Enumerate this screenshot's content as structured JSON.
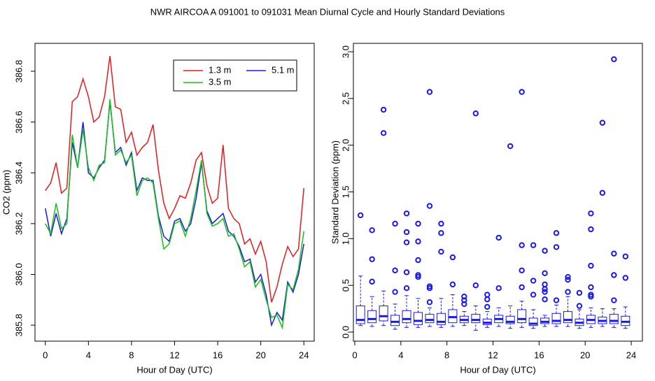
{
  "title": "NWR   AIRCOA A   091001 to 091031   Mean Diurnal Cycle and Hourly Standard Deviations",
  "chart_data": [
    {
      "type": "line",
      "x_label": "Hour of Day (UTC)",
      "y_label": "CO2 (ppm)",
      "x": [
        0,
        0.5,
        1,
        1.5,
        2,
        2.5,
        3,
        3.5,
        4,
        4.5,
        5,
        5.5,
        6,
        6.5,
        7,
        7.5,
        8,
        8.5,
        9,
        9.5,
        10,
        10.5,
        11,
        11.5,
        12,
        12.5,
        13,
        13.5,
        14,
        14.5,
        15,
        15.5,
        16,
        16.5,
        17,
        17.5,
        18,
        18.5,
        19,
        19.5,
        20,
        20.5,
        21,
        21.5,
        22,
        22.5,
        23,
        23.5,
        24
      ],
      "xlim": [
        -0.96,
        24.96
      ],
      "xticks": [
        0,
        4,
        8,
        12,
        16,
        20,
        24
      ],
      "ylim": [
        385.737,
        386.91
      ],
      "yticks": [
        385.8,
        {
          "value": 386,
          "label": "386.0"
        },
        386.2,
        386.4,
        386.6,
        386.8
      ],
      "legend": "top right",
      "series": [
        {
          "name": "1.3 m",
          "color": "#e8191c",
          "values": [
            386.33,
            386.36,
            386.44,
            386.32,
            386.34,
            386.68,
            386.7,
            386.77,
            386.7,
            386.6,
            386.62,
            386.7,
            386.86,
            386.66,
            386.65,
            386.52,
            386.56,
            386.47,
            386.5,
            386.52,
            386.59,
            386.41,
            386.28,
            386.22,
            386.26,
            386.31,
            386.3,
            386.36,
            386.45,
            386.48,
            386.35,
            386.28,
            386.3,
            386.51,
            386.26,
            386.22,
            386.2,
            386.12,
            386.14,
            386.08,
            386.13,
            386.05,
            385.89,
            385.95,
            386.04,
            386.11,
            386.07,
            386.1,
            386.34
          ]
        },
        {
          "name": "5.1 m",
          "color": "#1a1ae6",
          "values": [
            386.26,
            386.15,
            386.24,
            386.16,
            386.22,
            386.52,
            386.42,
            386.6,
            386.4,
            386.38,
            386.42,
            386.45,
            386.68,
            386.48,
            386.5,
            386.43,
            386.48,
            386.33,
            386.38,
            386.37,
            386.37,
            386.23,
            386.15,
            386.13,
            386.21,
            386.22,
            386.17,
            386.2,
            386.3,
            386.44,
            386.25,
            386.2,
            386.22,
            386.24,
            386.17,
            386.15,
            386.11,
            386.05,
            386.06,
            385.97,
            386,
            385.92,
            385.8,
            385.85,
            385.82,
            385.97,
            385.93,
            386,
            386.12
          ]
        },
        {
          "name": "3.5 m",
          "color": "#17c017",
          "values": [
            386.2,
            386.16,
            386.28,
            386.18,
            386.2,
            386.55,
            386.42,
            386.57,
            386.42,
            386.37,
            386.43,
            386.44,
            386.69,
            386.47,
            386.49,
            386.44,
            386.47,
            386.31,
            386.37,
            386.38,
            386.36,
            386.22,
            386.1,
            386.12,
            386.2,
            386.21,
            386.15,
            386.22,
            386.33,
            386.45,
            386.24,
            386.19,
            386.2,
            386.22,
            386.15,
            386.16,
            386.1,
            386.03,
            386.05,
            385.95,
            385.98,
            385.9,
            385.83,
            385.84,
            385.79,
            385.96,
            385.94,
            386.02,
            386.17
          ]
        }
      ]
    },
    {
      "type": "box",
      "x_label": "Hour of Day (UTC)",
      "y_label": "Standard Deviation (ppm)",
      "color": "#1a1ae6",
      "xlim": [
        -0.12,
        24.97
      ],
      "xticks": [
        0,
        4,
        8,
        12,
        16,
        20,
        24
      ],
      "ylim": [
        -0.097,
        3.09
      ],
      "yticks": [
        {
          "value": 0,
          "label": "0.0"
        },
        0.5,
        {
          "value": 1,
          "label": "1.0"
        },
        1.5,
        {
          "value": 2,
          "label": "2.0"
        },
        2.5,
        {
          "value": 3,
          "label": "3.0"
        }
      ],
      "boxes": [
        {
          "x": 0.5,
          "low": 0.07,
          "q1": 0.09,
          "median": 0.13,
          "q3": 0.28,
          "high": 0.6,
          "outliers": [
            1.25
          ]
        },
        {
          "x": 1.5,
          "low": 0.06,
          "q1": 0.1,
          "median": 0.14,
          "q3": 0.23,
          "high": 0.38,
          "outliers": [
            0.54,
            0.78,
            1.09
          ]
        },
        {
          "x": 2.5,
          "low": 0.07,
          "q1": 0.12,
          "median": 0.17,
          "q3": 0.28,
          "high": 0.44,
          "outliers": [
            2.13,
            2.38
          ]
        },
        {
          "x": 3.5,
          "low": 0.03,
          "q1": 0.07,
          "median": 0.11,
          "q3": 0.18,
          "high": 0.3,
          "outliers": [
            0.43,
            0.66,
            1.16
          ]
        },
        {
          "x": 4.5,
          "low": 0.05,
          "q1": 0.1,
          "median": 0.14,
          "q3": 0.23,
          "high": 0.39,
          "outliers": [
            0.47,
            0.64,
            0.96,
            1.07,
            1.27
          ]
        },
        {
          "x": 5.5,
          "low": 0.05,
          "q1": 0.08,
          "median": 0.12,
          "q3": 0.21,
          "high": 0.36,
          "outliers": [
            0.59,
            0.61,
            0.77,
            0.97,
            1.16
          ]
        },
        {
          "x": 6.5,
          "low": 0.06,
          "q1": 0.1,
          "median": 0.13,
          "q3": 0.19,
          "high": 0.26,
          "outliers": [
            0.32,
            0.47,
            0.49,
            1.35,
            2.57
          ]
        },
        {
          "x": 7.5,
          "low": 0.05,
          "q1": 0.08,
          "median": 0.11,
          "q3": 0.2,
          "high": 0.36,
          "outliers": [
            0.86,
            1.06,
            1.16
          ]
        },
        {
          "x": 8.5,
          "low": 0.06,
          "q1": 0.1,
          "median": 0.16,
          "q3": 0.24,
          "high": 0.4,
          "outliers": [
            0.51,
            0.8
          ]
        },
        {
          "x": 9.5,
          "low": 0.07,
          "q1": 0.1,
          "median": 0.13,
          "q3": 0.17,
          "high": 0.22,
          "outliers": [
            0.3,
            0.34,
            0.38
          ]
        },
        {
          "x": 10.5,
          "low": 0.02,
          "q1": 0.1,
          "median": 0.13,
          "q3": 0.19,
          "high": 0.28,
          "outliers": [
            0.5,
            2.34
          ]
        },
        {
          "x": 11.5,
          "low": 0.05,
          "q1": 0.08,
          "median": 0.1,
          "q3": 0.14,
          "high": 0.22,
          "outliers": [
            0.27,
            0.35,
            0.4
          ]
        },
        {
          "x": 12.5,
          "low": 0.06,
          "q1": 0.1,
          "median": 0.14,
          "q3": 0.18,
          "high": 0.26,
          "outliers": [
            0.47,
            1.01
          ]
        },
        {
          "x": 13.5,
          "low": 0.04,
          "q1": 0.09,
          "median": 0.11,
          "q3": 0.17,
          "high": 0.28,
          "outliers": [
            1.99
          ]
        },
        {
          "x": 14.5,
          "low": 0.05,
          "q1": 0.1,
          "median": 0.14,
          "q3": 0.24,
          "high": 0.33,
          "outliers": [
            0.48,
            0.66,
            0.93,
            2.57
          ]
        },
        {
          "x": 15.5,
          "low": 0.04,
          "q1": 0.07,
          "median": 0.09,
          "q3": 0.15,
          "high": 0.24,
          "outliers": [
            0.4,
            0.55,
            0.93
          ]
        },
        {
          "x": 16.5,
          "low": 0.06,
          "q1": 0.09,
          "median": 0.11,
          "q3": 0.15,
          "high": 0.18,
          "outliers": [
            0.35,
            0.43,
            0.46,
            0.51,
            0.63,
            0.87
          ]
        },
        {
          "x": 17.5,
          "low": 0.06,
          "q1": 0.09,
          "median": 0.12,
          "q3": 0.2,
          "high": 0.29,
          "outliers": [
            0.34,
            0.91,
            1.06
          ]
        },
        {
          "x": 18.5,
          "low": 0.06,
          "q1": 0.1,
          "median": 0.13,
          "q3": 0.22,
          "high": 0.38,
          "outliers": [
            0.43,
            0.56,
            0.59
          ]
        },
        {
          "x": 19.5,
          "low": 0.04,
          "q1": 0.07,
          "median": 0.1,
          "q3": 0.14,
          "high": 0.24,
          "outliers": [
            0.28,
            0.42
          ]
        },
        {
          "x": 20.5,
          "low": 0.05,
          "q1": 0.09,
          "median": 0.13,
          "q3": 0.18,
          "high": 0.26,
          "outliers": [
            0.38,
            0.4,
            0.48,
            0.71,
            1.1,
            1.27
          ]
        },
        {
          "x": 21.5,
          "low": 0.06,
          "q1": 0.09,
          "median": 0.12,
          "q3": 0.16,
          "high": 0.25,
          "outliers": [
            1.49,
            2.24
          ]
        },
        {
          "x": 22.5,
          "low": 0.05,
          "q1": 0.09,
          "median": 0.12,
          "q3": 0.19,
          "high": 0.25,
          "outliers": [
            0.34,
            0.61,
            0.84,
            2.92
          ]
        },
        {
          "x": 23.5,
          "low": 0.04,
          "q1": 0.07,
          "median": 0.11,
          "q3": 0.17,
          "high": 0.27,
          "outliers": [
            0.58,
            0.81
          ]
        }
      ]
    }
  ]
}
